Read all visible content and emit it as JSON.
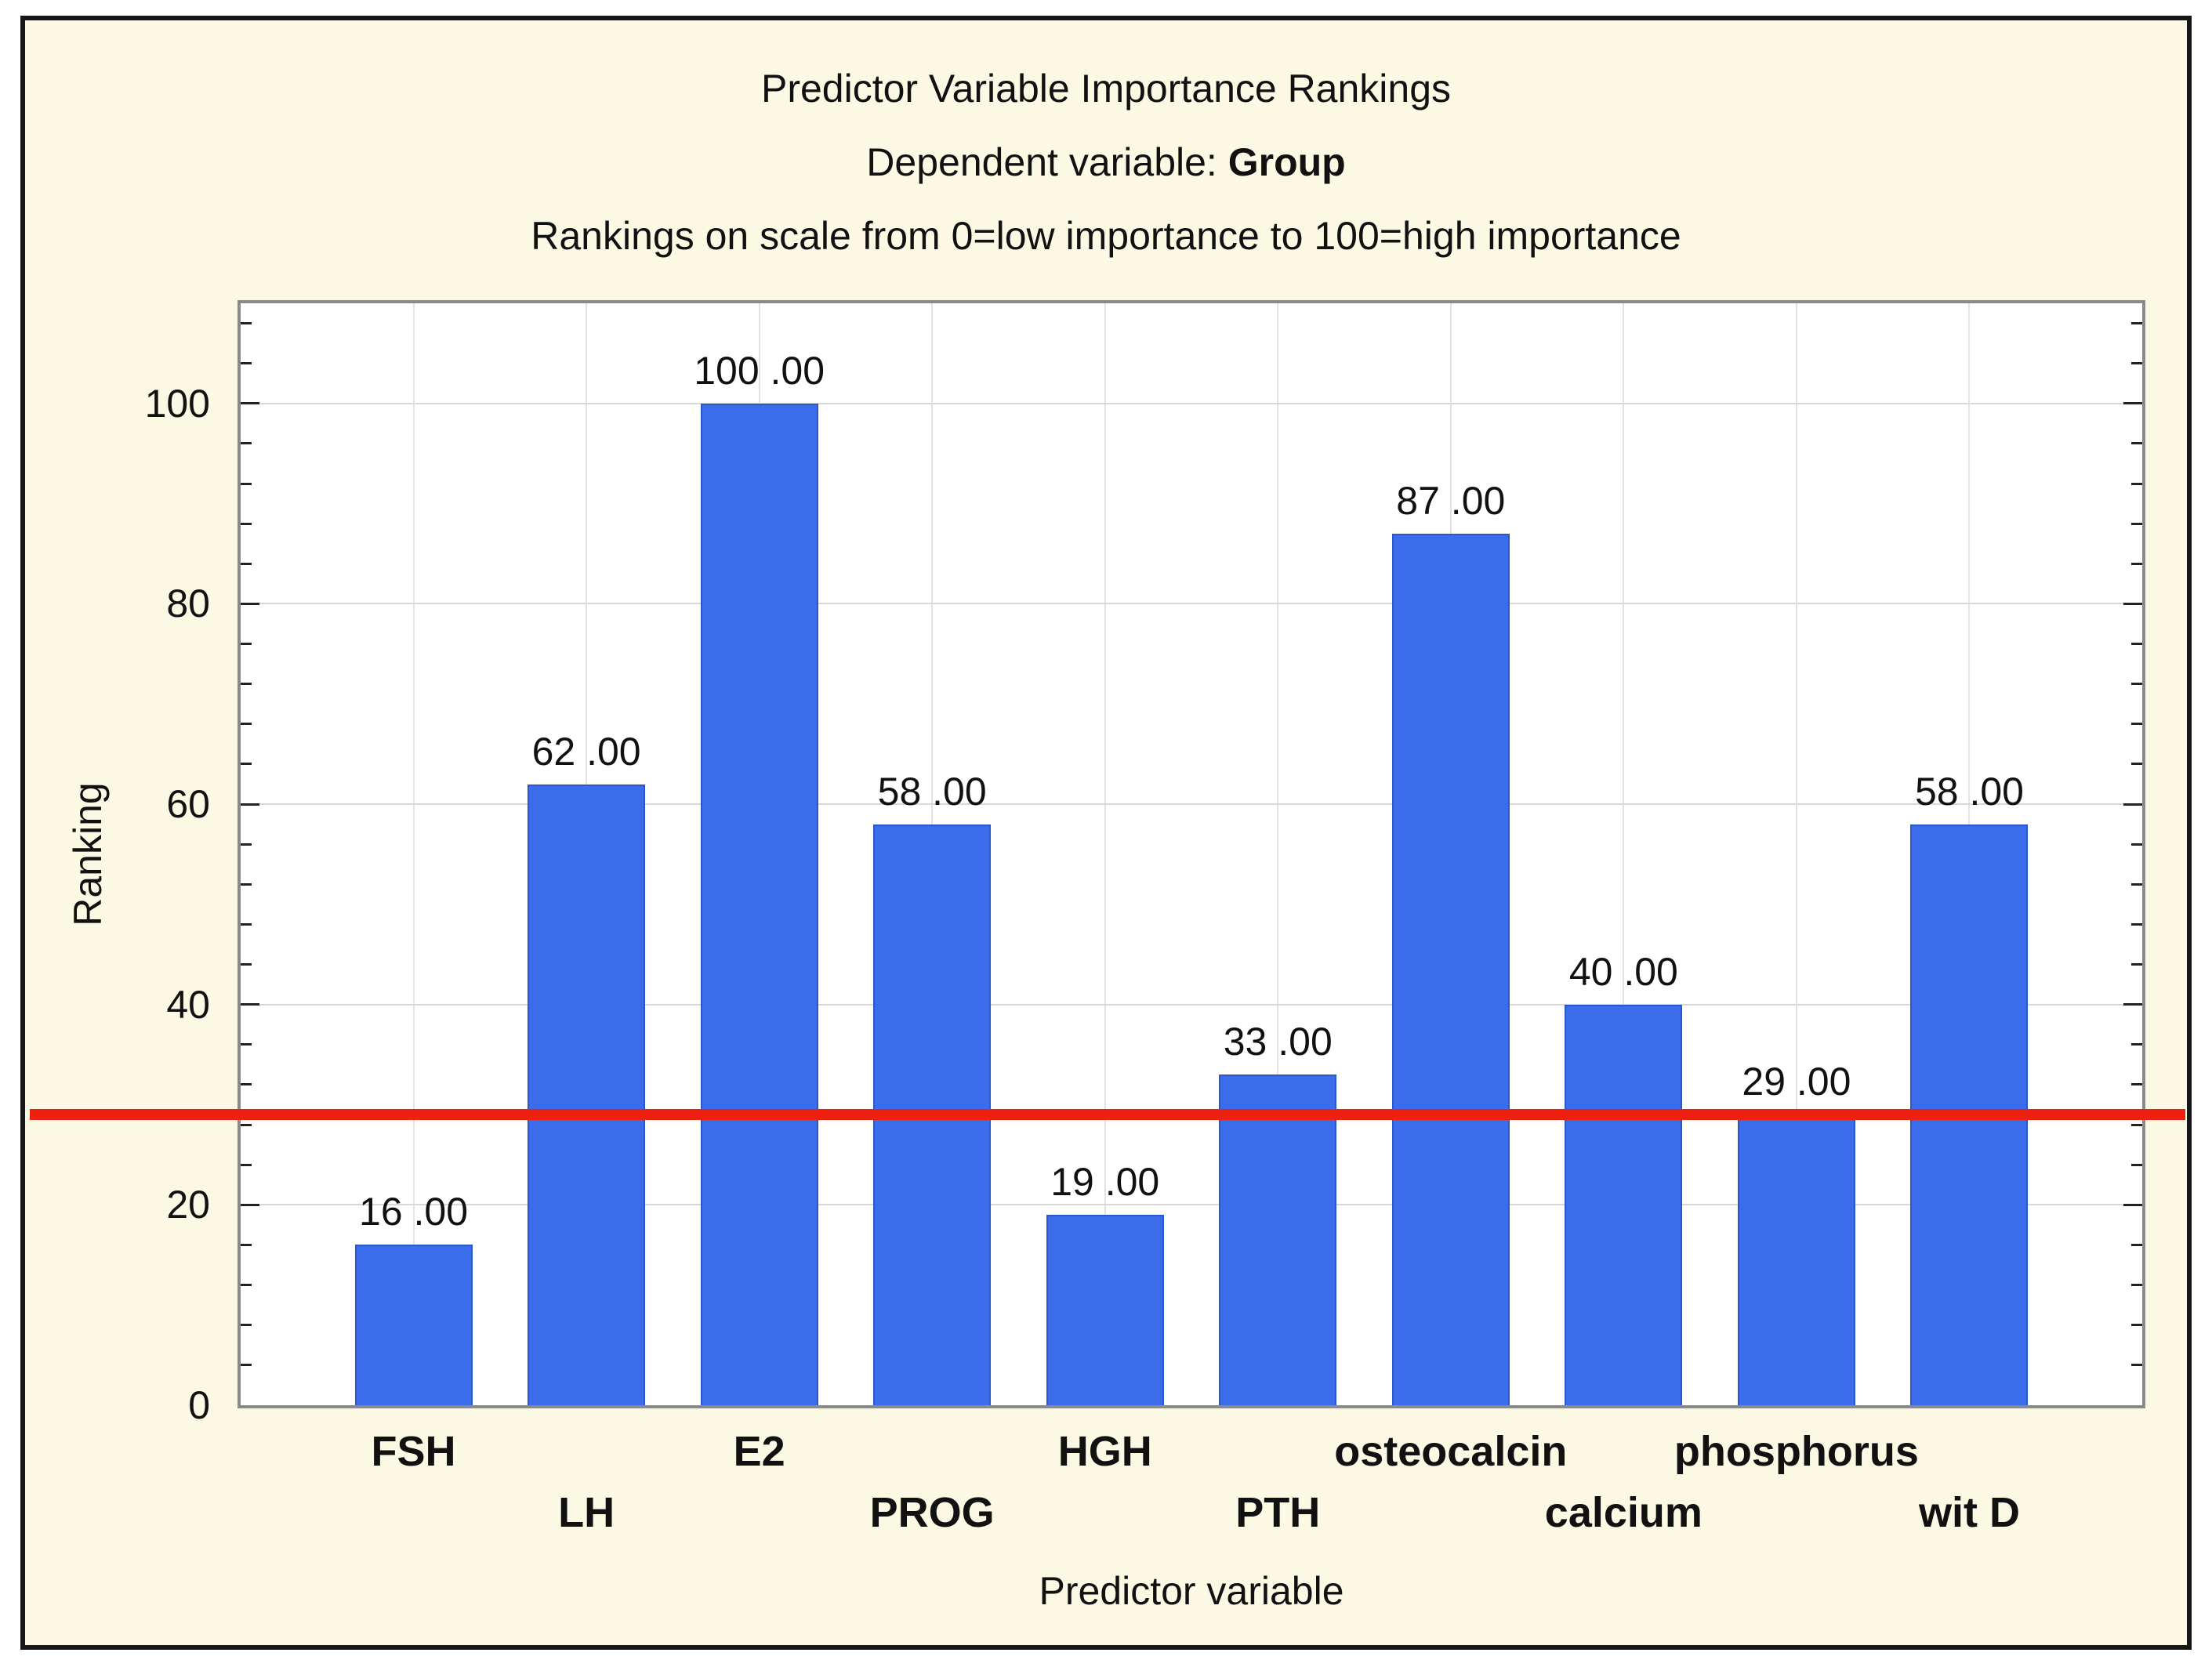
{
  "titles": {
    "line1": "Predictor Variable Importance Rankings",
    "line2_prefix": "Dependent variable: ",
    "line2_bold": "Group",
    "line3": "Rankings on scale from 0=low importance to 100=high importance"
  },
  "colors": {
    "background": "#FBF8E3",
    "bar_fill": "#3A6CEC",
    "bar_border": "#2A57CC",
    "threshold_red": "#EE2010",
    "plot_border": "#8A8A8A",
    "grid": "#D8D8D8"
  },
  "chart_data": {
    "type": "bar",
    "categories": [
      "FSH",
      "LH",
      "E2",
      "PROG",
      "HGH",
      "PTH",
      "osteocalcin",
      "calcium",
      "phosphorus",
      "wit D"
    ],
    "values": [
      16,
      62,
      100,
      58,
      19,
      33,
      87,
      40,
      29,
      58
    ],
    "value_labels": [
      "16 .00",
      "62 .00",
      "100 .00",
      "58 .00",
      "19 .00",
      "33 .00",
      "87 .00",
      "40 .00",
      "29 .00",
      "58 .00"
    ],
    "title": "Predictor Variable Importance Rankings",
    "xlabel": "Predictor variable",
    "ylabel": "Ranking",
    "ylim": [
      0,
      110
    ],
    "yticks": [
      0,
      20,
      40,
      60,
      80,
      100
    ],
    "minor_tick_step": 4,
    "grid": true,
    "legend": "none",
    "threshold_line": {
      "value": 29,
      "color": "#EE2010"
    }
  }
}
